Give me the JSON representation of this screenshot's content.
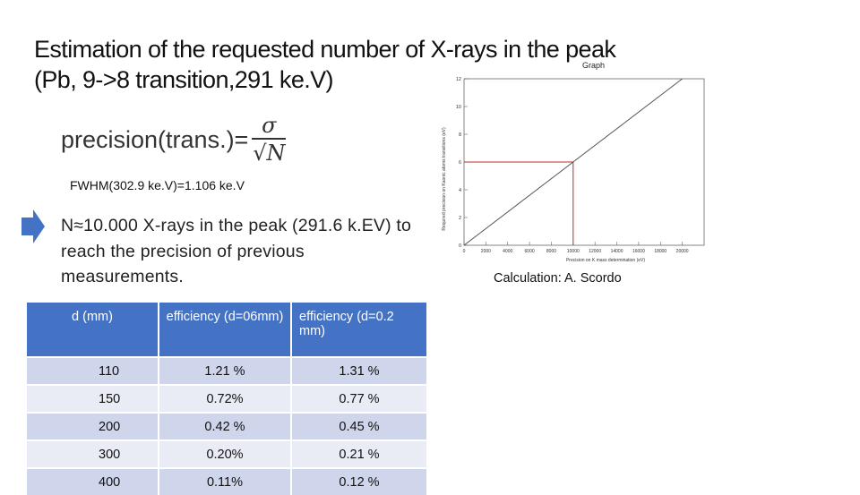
{
  "slide": {
    "title_line1": "Estimation of the requested number of X-rays in the peak",
    "title_line2": "(Pb, 9->8 transition,291 ke.V)",
    "formula": {
      "lhs": "precision(trans.)=",
      "numerator": "σ",
      "denominator": "√N"
    },
    "fwhm": "FWHM(302.9 ke.V)=1.106 ke.V",
    "arrow_icon": "right-arrow-icon",
    "arrow_color": "#4472c4",
    "n_text": "N≈10.000 X-rays in the peak (291.6 k.EV) to reach the precision of previous measurements.",
    "credit": "Calculation: A. Scordo"
  },
  "table": {
    "header_color": "#4472c4",
    "row_color_odd": "#cfd5ea",
    "row_color_even": "#e9ebf5",
    "headers": [
      "d (mm)",
      "efficiency (d=06mm)",
      "efficiency (d=0.2 mm)"
    ],
    "rows": [
      [
        "110",
        "1.21 %",
        "1.31 %"
      ],
      [
        "150",
        "0.72%",
        "0.77 %"
      ],
      [
        "200",
        "0.42 %",
        "0.45 %"
      ],
      [
        "300",
        "0.20%",
        "0.21 %"
      ],
      [
        "400",
        "0.11%",
        "0.12 %"
      ]
    ]
  },
  "chart_data": {
    "type": "line",
    "title": "Graph",
    "xlabel": "Precision on K mass determination (eV)",
    "ylabel": "Required precision on Kaonic atoms transitions (eV)",
    "xlim": [
      0,
      22000
    ],
    "ylim": [
      0,
      12
    ],
    "x_ticks": [
      "0",
      "2000",
      "4000",
      "6000",
      "8000",
      "10000",
      "12000",
      "14000",
      "16000",
      "18000",
      "20000"
    ],
    "y_ticks": [
      "0",
      "2",
      "4",
      "6",
      "8",
      "10",
      "12"
    ],
    "series": [
      {
        "x": [
          0,
          22000
        ],
        "y": [
          0,
          13.2
        ]
      }
    ],
    "marker": {
      "x": 10000,
      "y": 6,
      "color": "#b03030"
    },
    "line_color": "#555555",
    "grid": false
  }
}
